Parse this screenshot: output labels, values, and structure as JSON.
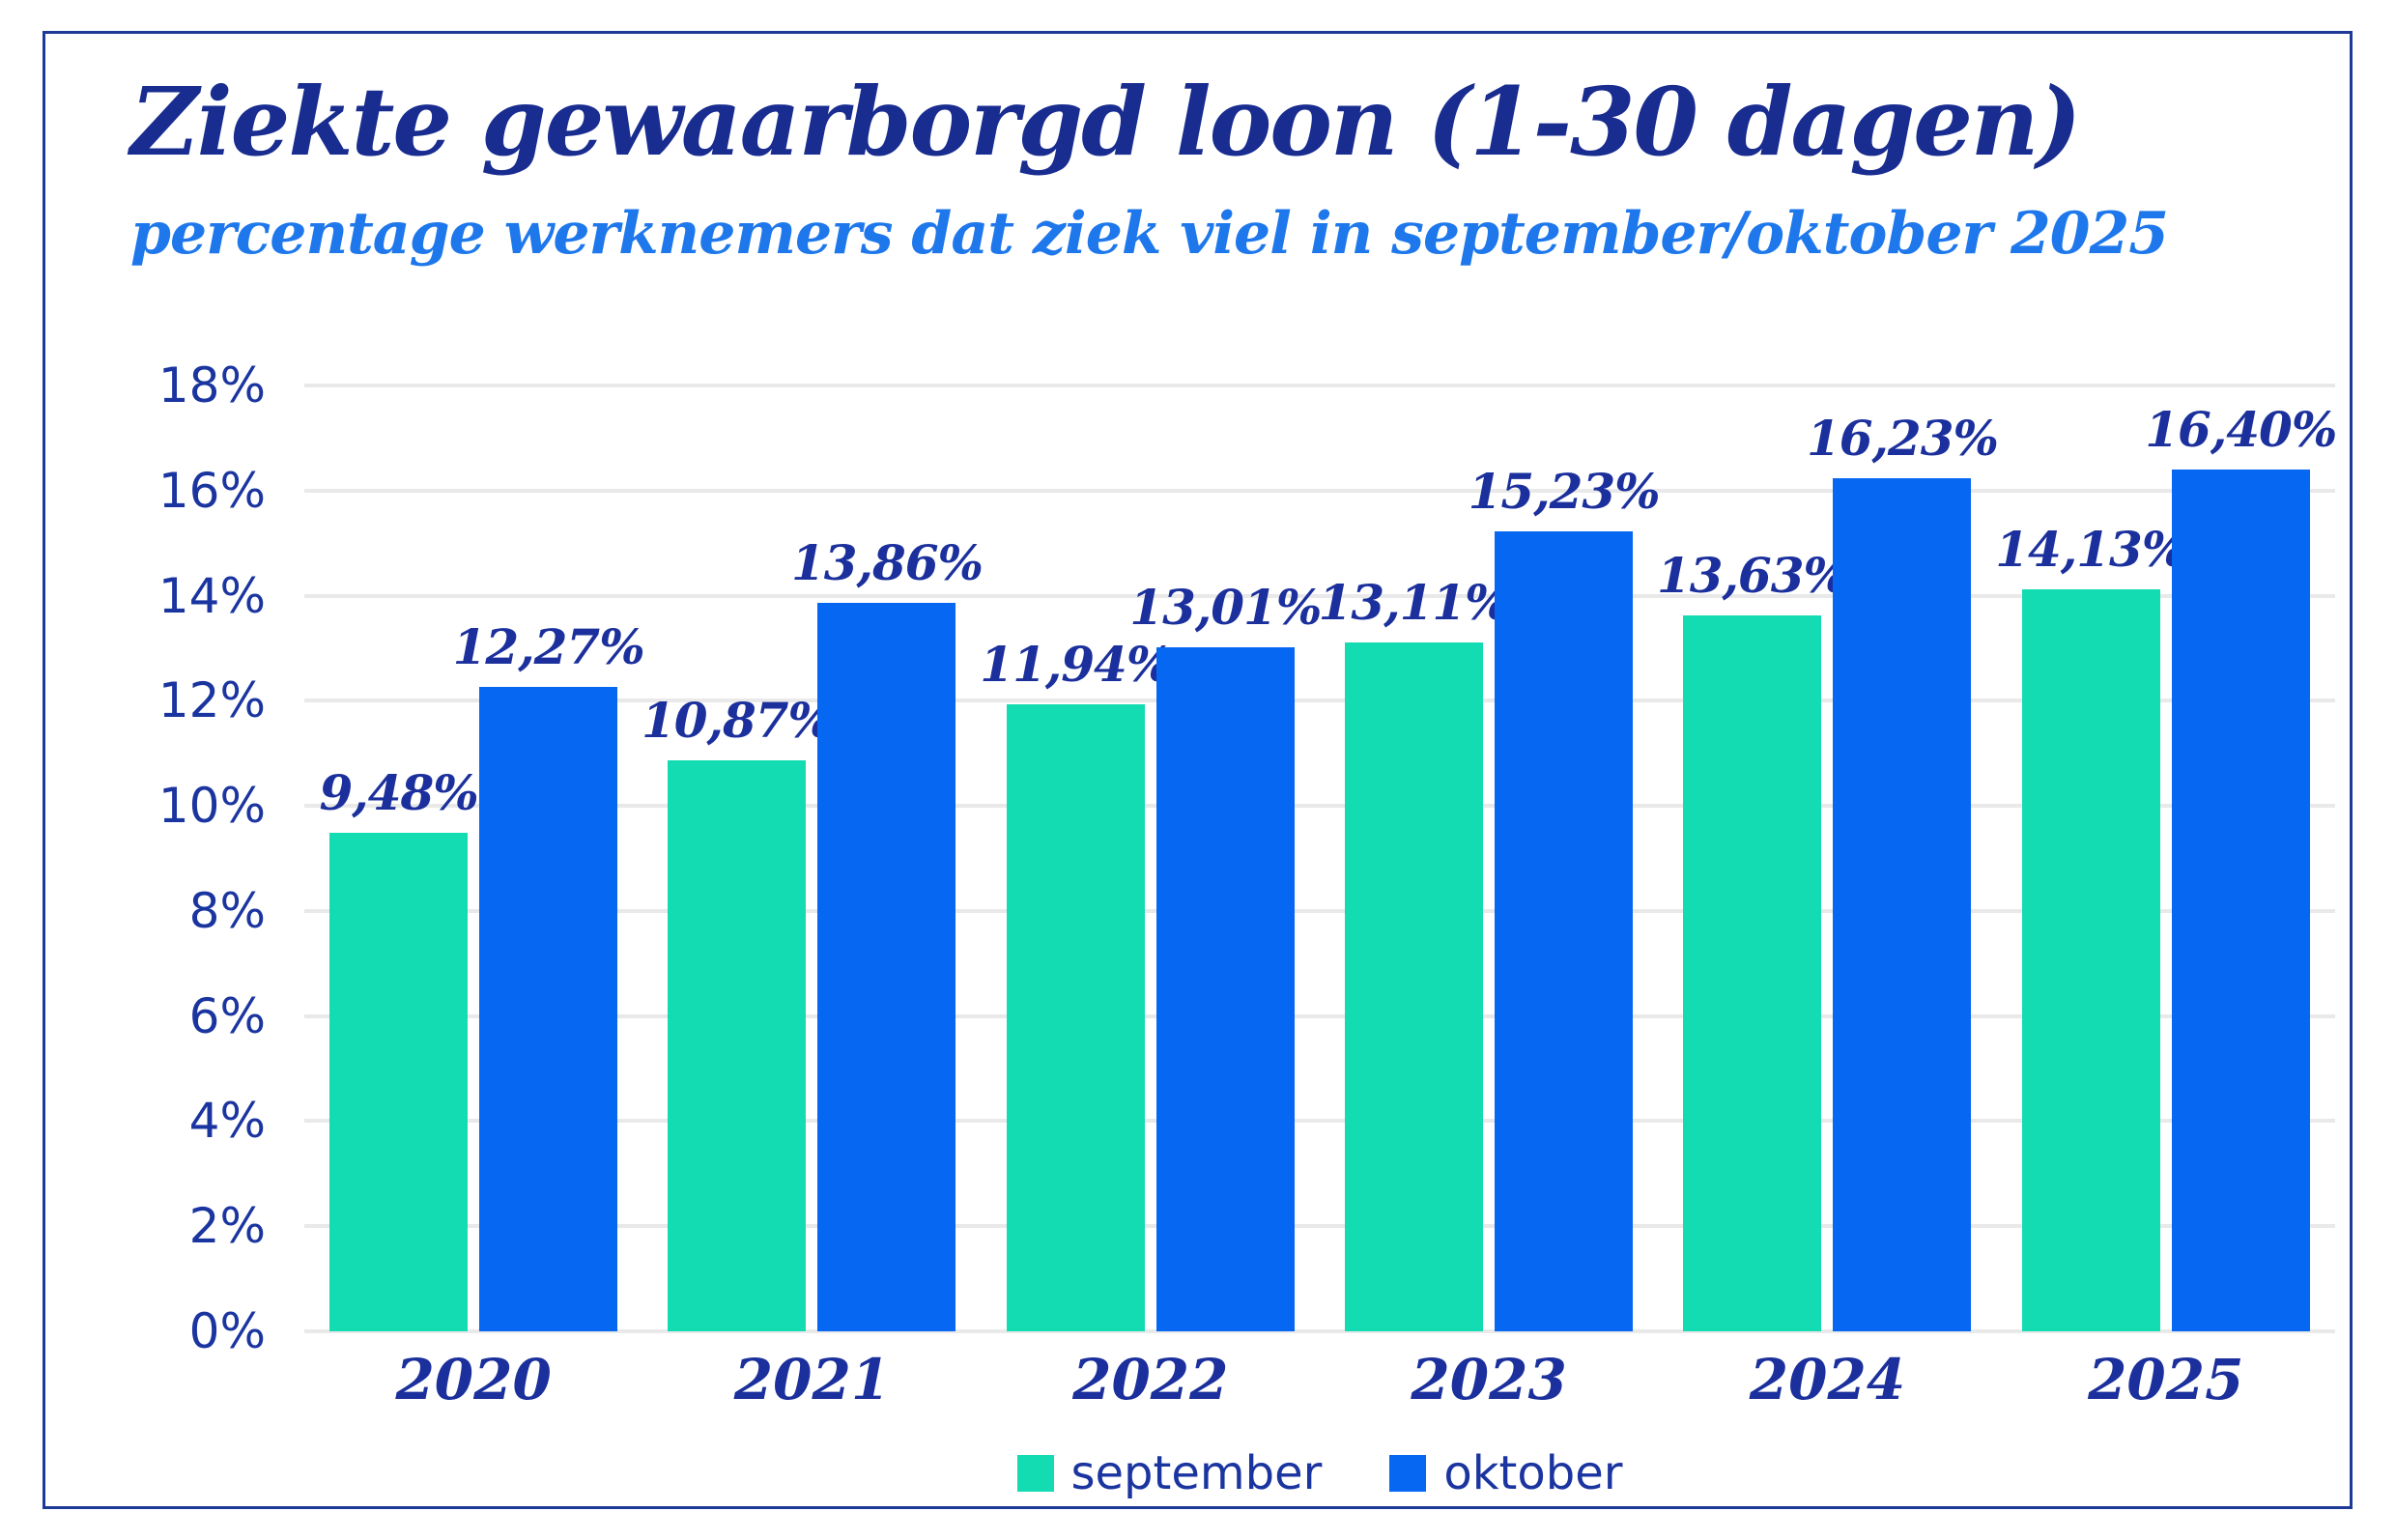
{
  "header": {
    "title": "Ziekte gewaarborgd loon (1-30 dagen)",
    "subtitle": "percentage werknemers dat ziek viel in september/oktober 2025"
  },
  "colors": {
    "september_teal": "#13DCB2",
    "oktober_blue": "#0667F3",
    "navy_text": "#1B309C",
    "subtitle_blue": "#1E78EC",
    "gridline_gray": "#E9E9E9",
    "frame_border": "#1C3A96",
    "background": "#FFFFFF"
  },
  "chart_data": {
    "type": "bar",
    "title": "Ziekte gewaarborgd loon (1-30 dagen)",
    "subtitle": "percentage werknemers dat ziek viel in september/oktober 2025",
    "categories": [
      "2020",
      "2021",
      "2022",
      "2023",
      "2024",
      "2025"
    ],
    "series": [
      {
        "name": "september",
        "color": "#13DCB2",
        "values": [
          9.48,
          10.87,
          11.94,
          13.11,
          13.63,
          14.13
        ],
        "labels": [
          "9,48%",
          "10,87%",
          "11,94%",
          "13,11%",
          "13,63%",
          "14,13%"
        ]
      },
      {
        "name": "oktober",
        "color": "#0667F3",
        "values": [
          12.27,
          13.86,
          13.01,
          15.23,
          16.23,
          16.4
        ],
        "labels": [
          "12,27%",
          "13,86%",
          "13,01%",
          "15,23%",
          "16,23%",
          "16,40%"
        ]
      }
    ],
    "ylim": [
      0,
      18
    ],
    "ytick_step": 2,
    "yticks": [
      "18%",
      "16%",
      "14%",
      "12%",
      "10%",
      "8%",
      "6%",
      "4%",
      "2%",
      "0%"
    ],
    "grid": "horizontal",
    "legend_position": "bottom"
  },
  "legend": {
    "items": [
      {
        "label": "september",
        "color": "#13DCB2"
      },
      {
        "label": "oktober",
        "color": "#0667F3"
      }
    ]
  }
}
